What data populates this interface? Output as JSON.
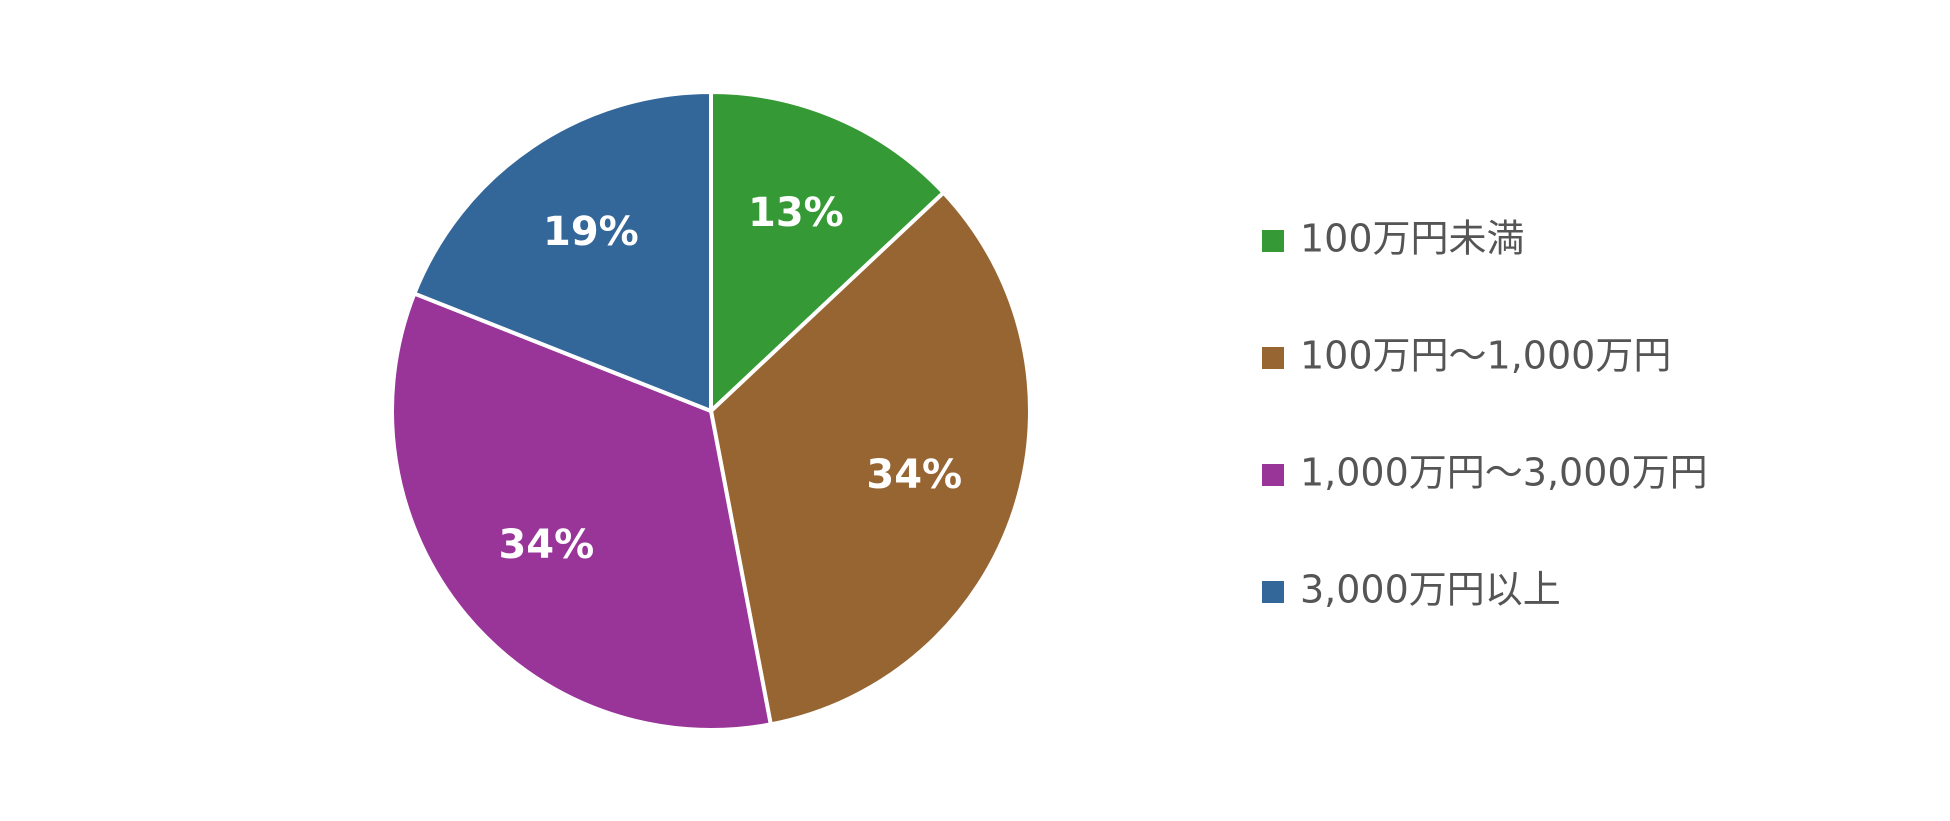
{
  "chart_data": {
    "type": "pie",
    "categories": [
      "100万円未満",
      "100万円〜1,000万円",
      "1,000万円〜3,000万円",
      "3,000万円以上"
    ],
    "values": [
      13,
      34,
      34,
      19
    ],
    "value_labels": [
      "13%",
      "34%",
      "34%",
      "19%"
    ],
    "colors": [
      "#359a35",
      "#976532",
      "#993499",
      "#336699"
    ],
    "legend": "right"
  }
}
